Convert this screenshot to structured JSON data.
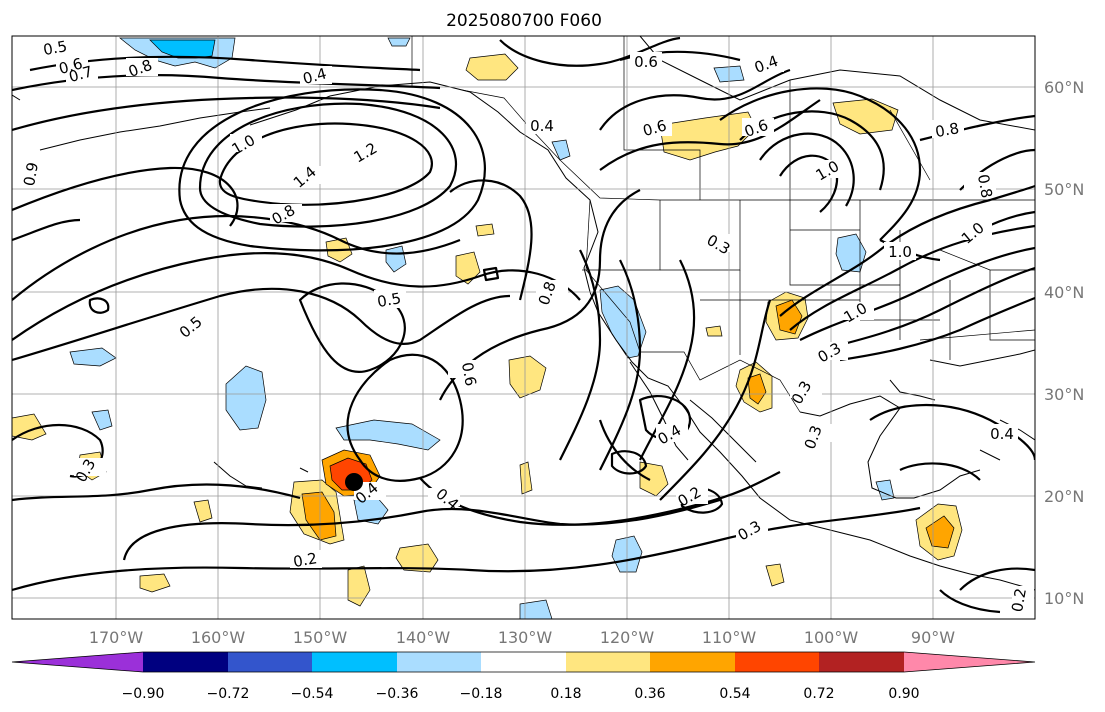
{
  "title": "2025080700 F060",
  "lon_labels": [
    "170°W",
    "160°W",
    "150°W",
    "140°W",
    "130°W",
    "120°W",
    "110°W",
    "100°W",
    "90°W"
  ],
  "lat_labels": [
    "60°N",
    "50°N",
    "40°N",
    "30°N",
    "20°N",
    "10°N"
  ],
  "colorbar": {
    "tick_labels": [
      "−0.90",
      "−0.72",
      "−0.54",
      "−0.36",
      "−0.18",
      "0.18",
      "0.36",
      "0.54",
      "0.72",
      "0.90"
    ],
    "colors": [
      "#9b30d9",
      "#000080",
      "#3355cc",
      "#00bfff",
      "#aaddff",
      "#ffffff",
      "#ffe680",
      "#ffa500",
      "#ff4500",
      "#b22222",
      "#ff88aa"
    ]
  },
  "contour_labels": [
    "0.5",
    "0.6",
    "0.7",
    "0.8",
    "0.4",
    "0.6",
    "0.4",
    "1.0",
    "1.4",
    "1.2",
    "0.8",
    "0.6",
    "0.4",
    "0.6",
    "0.3",
    "0.5",
    "0.5",
    "0.8",
    "0.6",
    "0.3",
    "0.8",
    "1.0",
    "1.0",
    "1.0",
    "0.8",
    "1.0",
    "0.9",
    "0.3",
    "0.4",
    "0.4",
    "0.4",
    "0.2",
    "0.2",
    "0.3",
    "0.3",
    "0.4",
    "0.2",
    "0.3"
  ]
}
